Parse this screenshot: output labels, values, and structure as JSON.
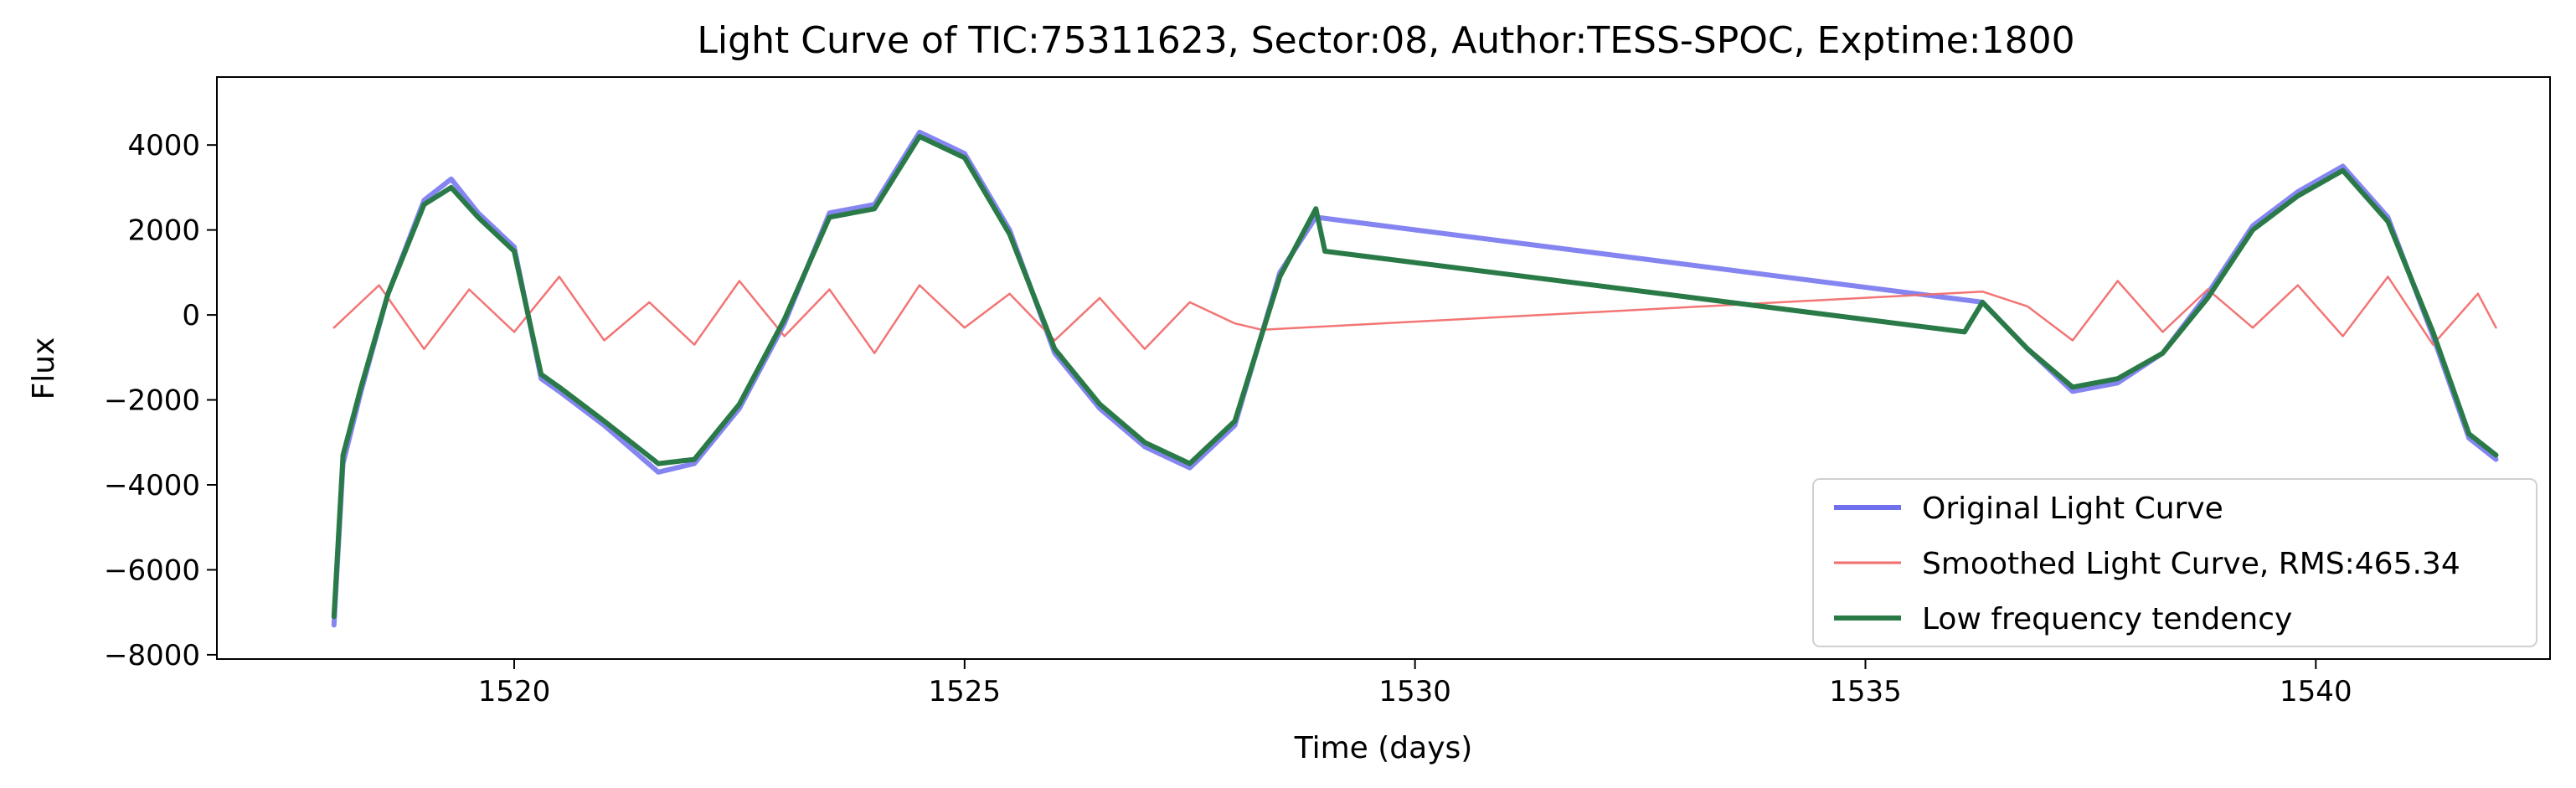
{
  "chart_data": {
    "type": "line",
    "title": "Light Curve of TIC:75311623, Sector:08, Author:TESS-SPOC, Exptime:1800",
    "xlabel": "Time (days)",
    "ylabel": "Flux",
    "xlim": [
      1516.7,
      1542.6
    ],
    "ylim": [
      -8100,
      5600
    ],
    "xticks": [
      1520,
      1525,
      1530,
      1535,
      1540
    ],
    "xtick_labels": [
      "1520",
      "1525",
      "1530",
      "1535",
      "1540"
    ],
    "yticks": [
      -8000,
      -6000,
      -4000,
      -2000,
      0,
      2000,
      4000
    ],
    "ytick_labels": [
      "−8000",
      "−6000",
      "−4000",
      "−2000",
      "0",
      "2000",
      "4000"
    ],
    "grid": false,
    "legend_position": "lower right",
    "series": [
      {
        "name": "Original Light Curve",
        "color": "#7070ee",
        "x": [
          1518.0,
          1518.1,
          1518.3,
          1518.6,
          1519.0,
          1519.3,
          1519.6,
          1520.0,
          1520.3,
          1520.5,
          1521.0,
          1521.6,
          1522.0,
          1522.5,
          1523.0,
          1523.5,
          1524.0,
          1524.5,
          1525.0,
          1525.5,
          1526.0,
          1526.5,
          1527.0,
          1527.5,
          1528.0,
          1528.5,
          1528.9,
          1536.3,
          1536.8,
          1537.3,
          1537.8,
          1538.3,
          1538.8,
          1539.3,
          1539.8,
          1540.3,
          1540.8,
          1541.3,
          1541.7,
          1542.0
        ],
        "y": [
          -7300,
          -3500,
          -1800,
          500,
          2700,
          3200,
          2400,
          1600,
          -1500,
          -1800,
          -2600,
          -3700,
          -3500,
          -2200,
          -200,
          2400,
          2600,
          4300,
          3800,
          2000,
          -900,
          -2200,
          -3100,
          -3600,
          -2600,
          1000,
          2300,
          300,
          -800,
          -1800,
          -1600,
          -900,
          500,
          2100,
          2900,
          3500,
          2300,
          -500,
          -2900,
          -3400
        ]
      },
      {
        "name": "Smoothed Light Curve, RMS:465.34",
        "color": "#f26e6e",
        "x": [
          1518.0,
          1518.5,
          1519.0,
          1519.5,
          1520.0,
          1520.5,
          1521.0,
          1521.5,
          1522.0,
          1522.5,
          1523.0,
          1523.5,
          1524.0,
          1524.5,
          1525.0,
          1525.5,
          1526.0,
          1526.5,
          1527.0,
          1527.5,
          1528.0,
          1528.3,
          1536.3,
          1536.8,
          1537.3,
          1537.8,
          1538.3,
          1538.8,
          1539.3,
          1539.8,
          1540.3,
          1540.8,
          1541.3,
          1541.8,
          1542.0
        ],
        "y": [
          -300,
          700,
          -800,
          600,
          -400,
          900,
          -600,
          300,
          -700,
          800,
          -500,
          600,
          -900,
          700,
          -300,
          500,
          -600,
          400,
          -800,
          300,
          -200,
          -350,
          550,
          200,
          -600,
          800,
          -400,
          600,
          -300,
          700,
          -500,
          900,
          -700,
          500,
          -300
        ]
      },
      {
        "name": "Low frequency tendency",
        "color": "#2a7a48",
        "x": [
          1518.0,
          1518.1,
          1518.3,
          1518.6,
          1519.0,
          1519.3,
          1519.6,
          1520.0,
          1520.3,
          1520.5,
          1521.0,
          1521.6,
          1522.0,
          1522.5,
          1523.0,
          1523.5,
          1524.0,
          1524.5,
          1525.0,
          1525.5,
          1526.0,
          1526.5,
          1527.0,
          1527.5,
          1528.0,
          1528.5,
          1528.9,
          1529.0,
          1536.1,
          1536.3,
          1536.8,
          1537.3,
          1537.8,
          1538.3,
          1538.8,
          1539.3,
          1539.8,
          1540.3,
          1540.8,
          1541.3,
          1541.7,
          1542.0
        ],
        "y": [
          -7100,
          -3300,
          -1700,
          500,
          2600,
          3000,
          2300,
          1500,
          -1400,
          -1700,
          -2500,
          -3500,
          -3400,
          -2100,
          -100,
          2300,
          2500,
          4200,
          3700,
          1900,
          -800,
          -2100,
          -3000,
          -3500,
          -2500,
          900,
          2500,
          1500,
          -400,
          300,
          -800,
          -1700,
          -1500,
          -900,
          400,
          2000,
          2800,
          3400,
          2200,
          -400,
          -2800,
          -3300
        ]
      }
    ]
  }
}
